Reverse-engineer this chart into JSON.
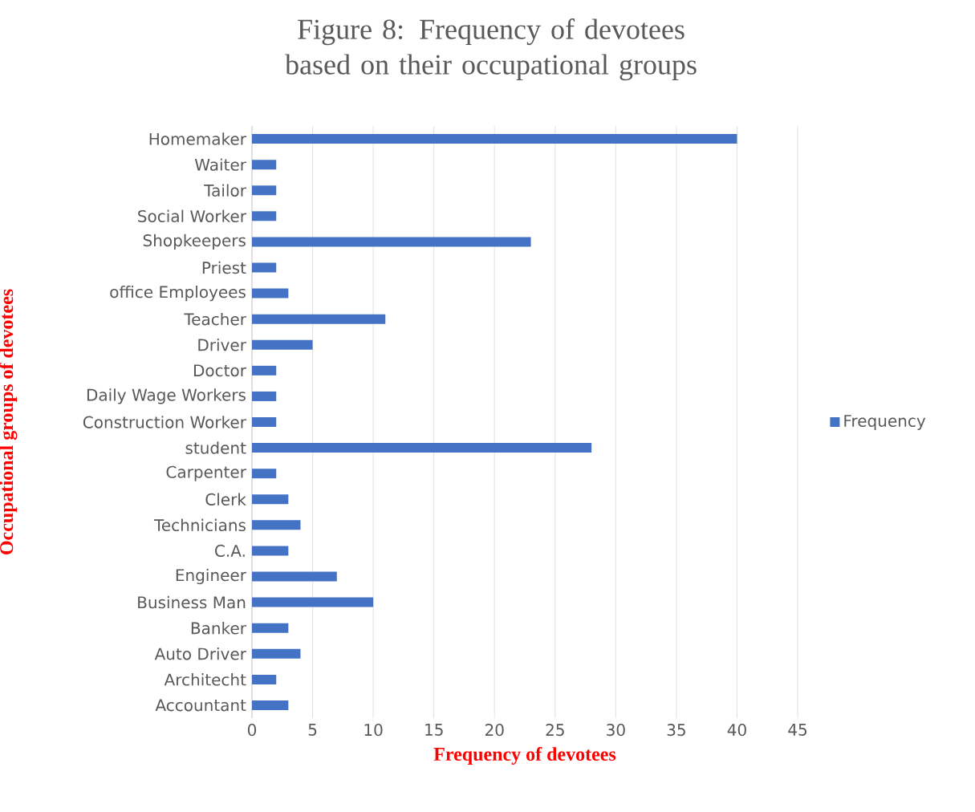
{
  "chart_data": {
    "type": "bar",
    "orientation": "horizontal",
    "title": "Figure 8: Frequency of devotees based on their occupational groups",
    "xlabel": "Frequency of devotees",
    "ylabel": "Occupational groups of devotees",
    "categories": [
      "Homemaker",
      "Waiter",
      "Tailor",
      "Social Worker",
      "Shopkeepers",
      "Priest",
      "office Employees",
      "Teacher",
      "Driver",
      "Doctor",
      "Daily Wage Workers",
      "Construction Worker",
      "student",
      "Carpenter",
      "Clerk",
      "Technicians",
      "C.A.",
      "Engineer",
      "Business Man",
      "Banker",
      "Auto Driver",
      "Architecht",
      "Accountant"
    ],
    "series": [
      {
        "name": "Frequency",
        "color": "#4472c4",
        "values": [
          40,
          2,
          2,
          2,
          23,
          2,
          3,
          11,
          5,
          2,
          2,
          2,
          28,
          2,
          3,
          4,
          3,
          7,
          10,
          3,
          4,
          2,
          3
        ]
      }
    ],
    "xlim": [
      0,
      45
    ],
    "xticks": [
      0,
      5,
      10,
      15,
      20,
      25,
      30,
      35,
      40,
      45
    ],
    "grid": "x",
    "legend": "right"
  }
}
